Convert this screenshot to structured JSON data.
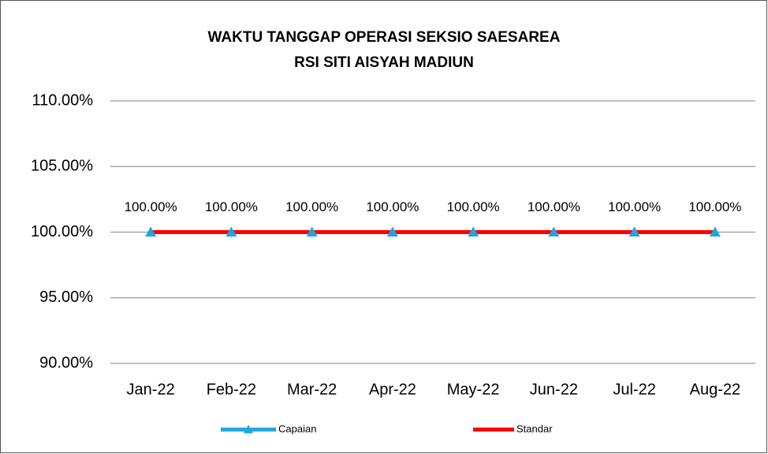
{
  "chart_data": {
    "type": "line",
    "title": [
      "WAKTU TANGGAP OPERASI SEKSIO SAESAREA",
      "RSI SITI AISYAH MADIUN"
    ],
    "categories": [
      "Jan-22",
      "Feb-22",
      "Mar-22",
      "Apr-22",
      "May-22",
      "Jun-22",
      "Jul-22",
      "Aug-22"
    ],
    "series": [
      {
        "name": "Capaian",
        "color": "#1fa6dc",
        "marker": "triangle",
        "values": [
          100,
          100,
          100,
          100,
          100,
          100,
          100,
          100
        ],
        "value_labels": [
          "100.00%",
          "100.00%",
          "100.00%",
          "100.00%",
          "100.00%",
          "100.00%",
          "100.00%",
          "100.00%"
        ]
      },
      {
        "name": "Standar",
        "color": "#ff0000",
        "values": [
          100,
          100,
          100,
          100,
          100,
          100,
          100,
          100
        ]
      }
    ],
    "ylim": [
      90,
      110
    ],
    "yticks": [
      {
        "value": 90,
        "label": "90.00%"
      },
      {
        "value": 95,
        "label": "95.00%"
      },
      {
        "value": 100,
        "label": "100.00%"
      },
      {
        "value": 105,
        "label": "105.00%"
      },
      {
        "value": 110,
        "label": "110.00%"
      }
    ],
    "grid": true,
    "legend": "bottom"
  }
}
